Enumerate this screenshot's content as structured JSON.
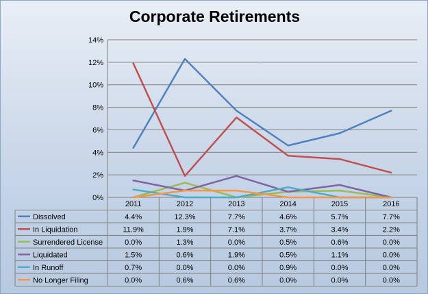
{
  "chart_data": {
    "type": "line",
    "title": "Corporate Retirements",
    "xlabel": "",
    "ylabel": "",
    "categories": [
      "2011",
      "2012",
      "2013",
      "2014",
      "2015",
      "2016"
    ],
    "ylim": [
      0,
      14
    ],
    "yticks": [
      "0%",
      "2%",
      "4%",
      "6%",
      "8%",
      "10%",
      "12%",
      "14%"
    ],
    "ytick_values": [
      0,
      2,
      4,
      6,
      8,
      10,
      12,
      14
    ],
    "grid": true,
    "legend": "data-table-below",
    "series": [
      {
        "name": "Dissolved",
        "color": "#4f81bd",
        "values": [
          4.4,
          12.3,
          7.7,
          4.6,
          5.7,
          7.7
        ],
        "labels": [
          "4.4%",
          "12.3%",
          "7.7%",
          "4.6%",
          "5.7%",
          "7.7%"
        ]
      },
      {
        "name": "In Liquidation",
        "color": "#c0504d",
        "values": [
          11.9,
          1.9,
          7.1,
          3.7,
          3.4,
          2.2
        ],
        "labels": [
          "11.9%",
          "1.9%",
          "7.1%",
          "3.7%",
          "3.4%",
          "2.2%"
        ]
      },
      {
        "name": "Surrendered License",
        "color": "#9bbb59",
        "values": [
          0.0,
          1.3,
          0.0,
          0.5,
          0.6,
          0.0
        ],
        "labels": [
          "0.0%",
          "1.3%",
          "0.0%",
          "0.5%",
          "0.6%",
          "0.0%"
        ]
      },
      {
        "name": "Liquidated",
        "color": "#8064a2",
        "values": [
          1.5,
          0.6,
          1.9,
          0.5,
          1.1,
          0.0
        ],
        "labels": [
          "1.5%",
          "0.6%",
          "1.9%",
          "0.5%",
          "1.1%",
          "0.0%"
        ]
      },
      {
        "name": "In Runoff",
        "color": "#4bacc6",
        "values": [
          0.7,
          0.0,
          0.0,
          0.9,
          0.0,
          0.0
        ],
        "labels": [
          "0.7%",
          "0.0%",
          "0.0%",
          "0.9%",
          "0.0%",
          "0.0%"
        ]
      },
      {
        "name": "No Longer Filing",
        "color": "#f79646",
        "values": [
          0.0,
          0.6,
          0.6,
          0.0,
          0.0,
          0.0
        ],
        "labels": [
          "0.0%",
          "0.6%",
          "0.6%",
          "0.0%",
          "0.0%",
          "0.0%"
        ]
      }
    ]
  }
}
